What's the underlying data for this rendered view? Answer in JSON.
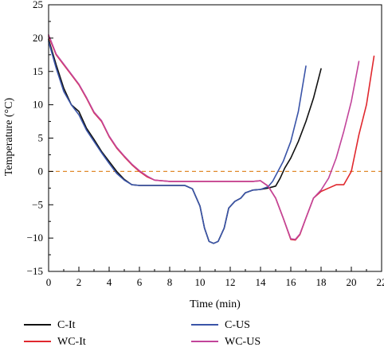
{
  "chart_data": {
    "type": "line",
    "xlabel": "Time (min)",
    "ylabel": "Temperature (°C)",
    "xlim": [
      0,
      22
    ],
    "ylim": [
      -15,
      25
    ],
    "x_ticks": [
      0,
      2,
      4,
      6,
      8,
      10,
      12,
      14,
      16,
      18,
      20,
      22
    ],
    "y_ticks": [
      -15,
      -10,
      -5,
      0,
      5,
      10,
      15,
      20,
      25
    ],
    "x_tick_labels": [
      "0",
      "2",
      "4",
      "6",
      "8",
      "10",
      "12",
      "14",
      "16",
      "18",
      "20",
      "22"
    ],
    "y_tick_labels": [
      "−15",
      "−10",
      "−5",
      "0",
      "5",
      "10",
      "15",
      "20",
      "25"
    ],
    "grid": false,
    "legend_position": "bottom",
    "reference_line": {
      "y": 0,
      "style": "dashed",
      "color": "#e08a2c"
    },
    "series": [
      {
        "name": "C-It",
        "color": "#111111",
        "points": [
          [
            0,
            19.8
          ],
          [
            0.5,
            16
          ],
          [
            1,
            12.5
          ],
          [
            1.5,
            10
          ],
          [
            2,
            9
          ],
          [
            2.5,
            6.5
          ],
          [
            3,
            4.8
          ],
          [
            3.5,
            3
          ],
          [
            4,
            1.5
          ],
          [
            4.5,
            0
          ],
          [
            5,
            -1.2
          ],
          [
            5.5,
            -2
          ],
          [
            6,
            -2.1
          ],
          [
            7,
            -2.1
          ],
          [
            8,
            -2.1
          ],
          [
            9,
            -2.1
          ],
          [
            9.5,
            -2.6
          ],
          [
            10,
            -5.2
          ],
          [
            10.3,
            -8.5
          ],
          [
            10.6,
            -10.5
          ],
          [
            10.9,
            -10.8
          ],
          [
            11.2,
            -10.5
          ],
          [
            11.6,
            -8.5
          ],
          [
            11.9,
            -5.5
          ],
          [
            12.3,
            -4.5
          ],
          [
            12.7,
            -4
          ],
          [
            13,
            -3.2
          ],
          [
            13.5,
            -2.8
          ],
          [
            14,
            -2.7
          ],
          [
            14.5,
            -2.5
          ],
          [
            15,
            -2.2
          ],
          [
            15.3,
            -1
          ],
          [
            15.6,
            0.5
          ],
          [
            16,
            2
          ],
          [
            16.5,
            4.5
          ],
          [
            17,
            7.5
          ],
          [
            17.5,
            11
          ],
          [
            18,
            15.4
          ]
        ]
      },
      {
        "name": "WC-It",
        "color": "#e0282e",
        "points": [
          [
            0,
            20.3
          ],
          [
            0.5,
            17.5
          ],
          [
            1,
            16
          ],
          [
            1.5,
            14.5
          ],
          [
            2,
            13
          ],
          [
            2.5,
            11
          ],
          [
            3,
            8.8
          ],
          [
            3.5,
            7.5
          ],
          [
            4,
            5.2
          ],
          [
            4.5,
            3.5
          ],
          [
            5,
            2.2
          ],
          [
            5.5,
            1
          ],
          [
            6,
            0
          ],
          [
            6.5,
            -0.8
          ],
          [
            7,
            -1.3
          ],
          [
            8,
            -1.5
          ],
          [
            10,
            -1.5
          ],
          [
            12,
            -1.5
          ],
          [
            13,
            -1.5
          ],
          [
            13.5,
            -1.5
          ],
          [
            14,
            -1.4
          ],
          [
            14.5,
            -2.2
          ],
          [
            15,
            -4
          ],
          [
            15.5,
            -7
          ],
          [
            16,
            -10.2
          ],
          [
            16.3,
            -10.3
          ],
          [
            16.6,
            -9.5
          ],
          [
            17,
            -7
          ],
          [
            17.5,
            -4
          ],
          [
            18,
            -3
          ],
          [
            18.5,
            -2.5
          ],
          [
            19,
            -2
          ],
          [
            19.5,
            -2
          ],
          [
            20,
            0
          ],
          [
            20.5,
            5.5
          ],
          [
            21,
            10
          ],
          [
            21.5,
            17.3
          ]
        ]
      },
      {
        "name": "C-US",
        "color": "#3a54a8",
        "points": [
          [
            0,
            19.5
          ],
          [
            0.5,
            15.5
          ],
          [
            1,
            12
          ],
          [
            1.5,
            10
          ],
          [
            2,
            8.5
          ],
          [
            2.5,
            6.2
          ],
          [
            3,
            4.5
          ],
          [
            3.5,
            2.8
          ],
          [
            4,
            1.2
          ],
          [
            4.5,
            -0.3
          ],
          [
            5,
            -1.3
          ],
          [
            5.5,
            -2
          ],
          [
            6,
            -2.1
          ],
          [
            7,
            -2.1
          ],
          [
            8,
            -2.1
          ],
          [
            9,
            -2.1
          ],
          [
            9.5,
            -2.6
          ],
          [
            10,
            -5.2
          ],
          [
            10.3,
            -8.5
          ],
          [
            10.6,
            -10.5
          ],
          [
            10.9,
            -10.8
          ],
          [
            11.2,
            -10.5
          ],
          [
            11.6,
            -8.5
          ],
          [
            11.9,
            -5.5
          ],
          [
            12.3,
            -4.5
          ],
          [
            12.7,
            -4
          ],
          [
            13,
            -3.2
          ],
          [
            13.5,
            -2.8
          ],
          [
            14,
            -2.7
          ],
          [
            14.5,
            -2.3
          ],
          [
            14.8,
            -1.5
          ],
          [
            15.1,
            -0.2
          ],
          [
            15.5,
            1.5
          ],
          [
            16,
            4.5
          ],
          [
            16.5,
            9
          ],
          [
            17,
            15.8
          ]
        ]
      },
      {
        "name": "WC-US",
        "color": "#c2449a",
        "points": [
          [
            0,
            20.5
          ],
          [
            0.5,
            17.6
          ],
          [
            1,
            16.1
          ],
          [
            1.5,
            14.6
          ],
          [
            2,
            13.1
          ],
          [
            2.5,
            11.1
          ],
          [
            3,
            8.9
          ],
          [
            3.5,
            7.6
          ],
          [
            4,
            5.3
          ],
          [
            4.5,
            3.6
          ],
          [
            5,
            2.3
          ],
          [
            5.5,
            1.1
          ],
          [
            6,
            0.1
          ],
          [
            6.5,
            -0.7
          ],
          [
            7,
            -1.3
          ],
          [
            8,
            -1.5
          ],
          [
            10,
            -1.5
          ],
          [
            12,
            -1.5
          ],
          [
            13,
            -1.5
          ],
          [
            13.5,
            -1.5
          ],
          [
            14,
            -1.4
          ],
          [
            14.5,
            -2.2
          ],
          [
            15,
            -4
          ],
          [
            15.5,
            -7
          ],
          [
            16,
            -10.1
          ],
          [
            16.3,
            -10.2
          ],
          [
            16.6,
            -9.4
          ],
          [
            17,
            -7
          ],
          [
            17.5,
            -4
          ],
          [
            18,
            -2.8
          ],
          [
            18.5,
            -1
          ],
          [
            19,
            2
          ],
          [
            19.5,
            6
          ],
          [
            20,
            10.5
          ],
          [
            20.5,
            16.5
          ]
        ]
      }
    ],
    "legend": {
      "items": [
        {
          "label": "C-It",
          "color": "#111111"
        },
        {
          "label": "C-US",
          "color": "#3a54a8"
        },
        {
          "label": "WC-It",
          "color": "#e0282e"
        },
        {
          "label": "WC-US",
          "color": "#c2449a"
        }
      ]
    }
  }
}
